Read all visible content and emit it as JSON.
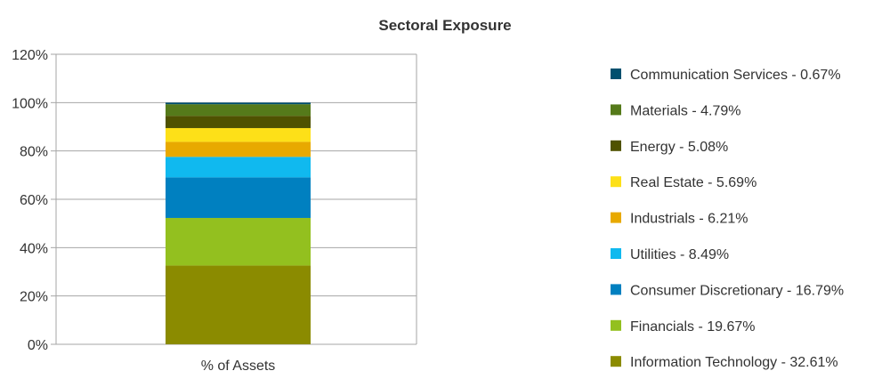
{
  "chart_data": {
    "type": "bar",
    "stacked": true,
    "title": "Sectoral Exposure",
    "categories": [
      "% of Assets"
    ],
    "ylim": [
      0,
      120
    ],
    "yticks": [
      0,
      20,
      40,
      60,
      80,
      100,
      120
    ],
    "ytick_labels": [
      "0%",
      "20%",
      "40%",
      "60%",
      "80%",
      "100%",
      "120%"
    ],
    "grid": true,
    "legend_position": "right",
    "series": [
      {
        "name": "Information Technology",
        "label": "Information Technology - 32.61%",
        "values": [
          32.61
        ],
        "color": "#8b8b00"
      },
      {
        "name": "Financials",
        "label": "Financials - 19.67%",
        "values": [
          19.67
        ],
        "color": "#93c01f"
      },
      {
        "name": "Consumer Discretionary",
        "label": "Consumer Discretionary - 16.79%",
        "values": [
          16.79
        ],
        "color": "#0080c0"
      },
      {
        "name": "Utilities",
        "label": "Utilities - 8.49%",
        "values": [
          8.49
        ],
        "color": "#10b9ef"
      },
      {
        "name": "Industrials",
        "label": "Industrials - 6.21%",
        "values": [
          6.21
        ],
        "color": "#e8a900"
      },
      {
        "name": "Real Estate",
        "label": "Real Estate - 5.69%",
        "values": [
          5.69
        ],
        "color": "#fde018"
      },
      {
        "name": "Energy",
        "label": "Energy - 5.08%",
        "values": [
          5.08
        ],
        "color": "#4f5200"
      },
      {
        "name": "Materials",
        "label": "Materials - 4.79%",
        "values": [
          4.79
        ],
        "color": "#557a1a"
      },
      {
        "name": "Communication Services",
        "label": "Communication Services - 0.67%",
        "values": [
          0.67
        ],
        "color": "#00506e"
      }
    ]
  }
}
